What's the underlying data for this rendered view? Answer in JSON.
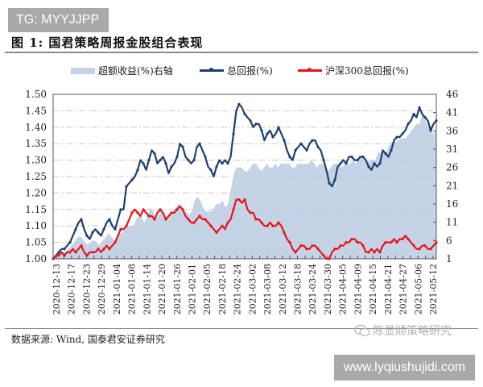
{
  "watermark_top": "TG: MYYJJPP",
  "figure_title": "图 1:  国君策略周报金股组合表现",
  "source_text": "数据来源:  Wind,  国泰君安证券研究",
  "wechat_watermark": "陈显顺策略研究",
  "url_watermark": "www.lyqiushujidi.com",
  "colors": {
    "area": "#c5d3e6",
    "total_return": "#1f3f6e",
    "csi300": "#e8151b",
    "grid": "#c8c8c8",
    "axis": "#555555"
  },
  "legend": [
    {
      "label": "超额收益(%)右轴",
      "type": "area",
      "color": "#c5d3e6"
    },
    {
      "label": "总回报(%)",
      "type": "line",
      "color": "#1f3f6e"
    },
    {
      "label": "沪深300总回报(%)",
      "type": "line",
      "color": "#e8151b"
    }
  ],
  "chart_data": {
    "type": "line",
    "title": "国君策略周报金股组合表现",
    "xlabel": "",
    "ylabel_left": "",
    "ylabel_right": "",
    "ylim_left": [
      1.0,
      1.5
    ],
    "yticks_left": [
      "1.00",
      "1.05",
      "1.10",
      "1.15",
      "1.20",
      "1.25",
      "1.30",
      "1.35",
      "1.40",
      "1.45",
      "1.50"
    ],
    "ylim_right": [
      1,
      46
    ],
    "yticks_right": [
      "1",
      "6",
      "11",
      "16",
      "21",
      "26",
      "31",
      "36",
      "41",
      "46"
    ],
    "x_tick_labels": [
      "2020-12-13",
      "2020-12-17",
      "2020-12-23",
      "2020-12-29",
      "2021-01-04",
      "2021-01-08",
      "2021-01-14",
      "2021-01-20",
      "2021-01-26",
      "2021-02-01",
      "2021-02-05",
      "2021-02-18",
      "2021-02-24",
      "2021-03-02",
      "2021-03-08",
      "2021-03-12",
      "2021-03-18",
      "2021-03-24",
      "2021-03-30",
      "2021-04-05",
      "2021-04-09",
      "2021-04-15",
      "2021-04-21",
      "2021-04-27",
      "2021-05-06",
      "2021-05-12"
    ],
    "grid": true,
    "legend_position": "top",
    "series": [
      {
        "name": "总回报(%)",
        "axis": "left",
        "type": "line",
        "values": [
          1.0,
          1.01,
          1.02,
          1.03,
          1.03,
          1.04,
          1.05,
          1.07,
          1.09,
          1.11,
          1.12,
          1.09,
          1.07,
          1.06,
          1.08,
          1.09,
          1.08,
          1.07,
          1.09,
          1.11,
          1.12,
          1.1,
          1.09,
          1.12,
          1.15,
          1.15,
          1.22,
          1.23,
          1.24,
          1.25,
          1.27,
          1.3,
          1.29,
          1.27,
          1.3,
          1.33,
          1.32,
          1.29,
          1.3,
          1.31,
          1.29,
          1.26,
          1.28,
          1.29,
          1.31,
          1.35,
          1.34,
          1.31,
          1.3,
          1.29,
          1.3,
          1.34,
          1.35,
          1.33,
          1.31,
          1.28,
          1.27,
          1.25,
          1.28,
          1.3,
          1.29,
          1.3,
          1.29,
          1.31,
          1.38,
          1.45,
          1.47,
          1.46,
          1.44,
          1.43,
          1.42,
          1.4,
          1.41,
          1.41,
          1.39,
          1.36,
          1.38,
          1.39,
          1.37,
          1.38,
          1.4,
          1.38,
          1.36,
          1.33,
          1.31,
          1.3,
          1.33,
          1.34,
          1.35,
          1.34,
          1.33,
          1.35,
          1.36,
          1.36,
          1.34,
          1.33,
          1.3,
          1.27,
          1.23,
          1.22,
          1.24,
          1.28,
          1.29,
          1.3,
          1.29,
          1.31,
          1.31,
          1.3,
          1.3,
          1.31,
          1.31,
          1.3,
          1.28,
          1.27,
          1.29,
          1.28,
          1.29,
          1.33,
          1.32,
          1.31,
          1.33,
          1.36,
          1.37,
          1.37,
          1.38,
          1.39,
          1.41,
          1.42,
          1.44,
          1.43,
          1.46,
          1.44,
          1.43,
          1.42,
          1.39,
          1.41,
          1.42
        ]
      },
      {
        "name": "沪深300总回报(%)",
        "axis": "left",
        "type": "line",
        "values": [
          1.0,
          1.01,
          1.01,
          1.02,
          1.01,
          1.02,
          1.02,
          1.03,
          1.02,
          1.03,
          1.04,
          1.02,
          1.01,
          1.02,
          1.02,
          1.02,
          1.03,
          1.02,
          1.03,
          1.04,
          1.03,
          1.04,
          1.05,
          1.07,
          1.09,
          1.09,
          1.1,
          1.12,
          1.14,
          1.15,
          1.14,
          1.13,
          1.15,
          1.14,
          1.13,
          1.13,
          1.12,
          1.14,
          1.15,
          1.14,
          1.12,
          1.13,
          1.14,
          1.14,
          1.15,
          1.16,
          1.15,
          1.13,
          1.12,
          1.11,
          1.11,
          1.12,
          1.13,
          1.12,
          1.12,
          1.11,
          1.1,
          1.09,
          1.08,
          1.09,
          1.1,
          1.09,
          1.11,
          1.12,
          1.15,
          1.18,
          1.18,
          1.17,
          1.18,
          1.15,
          1.14,
          1.14,
          1.12,
          1.12,
          1.11,
          1.1,
          1.1,
          1.11,
          1.1,
          1.1,
          1.11,
          1.1,
          1.08,
          1.06,
          1.05,
          1.03,
          1.02,
          1.03,
          1.04,
          1.04,
          1.03,
          1.03,
          1.04,
          1.04,
          1.03,
          1.02,
          1.01,
          1.0,
          1.0,
          1.02,
          1.03,
          1.03,
          1.04,
          1.04,
          1.05,
          1.05,
          1.06,
          1.06,
          1.05,
          1.05,
          1.04,
          1.02,
          1.02,
          1.03,
          1.02,
          1.03,
          1.02,
          1.04,
          1.05,
          1.05,
          1.05,
          1.06,
          1.05,
          1.06,
          1.06,
          1.07,
          1.06,
          1.05,
          1.04,
          1.03,
          1.03,
          1.04,
          1.04,
          1.03,
          1.03,
          1.04,
          1.05
        ]
      },
      {
        "name": "超额收益(%)右轴",
        "axis": "right",
        "type": "area",
        "values": [
          1,
          1.5,
          2,
          2.5,
          3,
          3.5,
          4,
          5,
          6,
          7,
          7,
          6,
          5,
          5,
          6,
          6,
          5,
          5,
          6,
          7,
          8,
          7,
          6,
          7,
          8,
          8,
          10,
          10,
          10,
          10,
          12,
          13,
          12,
          11,
          13,
          15,
          14,
          12,
          13,
          14,
          13,
          12,
          13,
          14,
          15,
          16,
          15,
          14,
          14,
          13,
          14,
          17,
          18,
          17,
          15,
          14,
          14,
          14,
          15,
          16,
          16,
          17,
          15,
          16,
          20,
          24,
          26,
          26,
          26,
          25,
          25,
          26,
          27,
          27,
          26,
          25,
          26,
          27,
          26,
          26,
          27,
          26,
          27,
          27,
          27,
          27,
          26,
          26,
          27,
          27,
          27,
          27,
          27,
          28,
          27,
          26,
          27,
          27,
          26,
          25,
          26,
          27,
          27,
          27,
          26,
          27,
          27,
          27,
          28,
          27,
          28,
          29,
          28,
          27,
          28,
          28,
          28,
          30,
          30,
          30,
          30,
          32,
          33,
          33,
          33,
          34,
          34,
          34,
          35,
          36,
          37,
          38,
          38,
          41,
          39,
          37,
          37,
          35,
          37
        ]
      }
    ]
  }
}
